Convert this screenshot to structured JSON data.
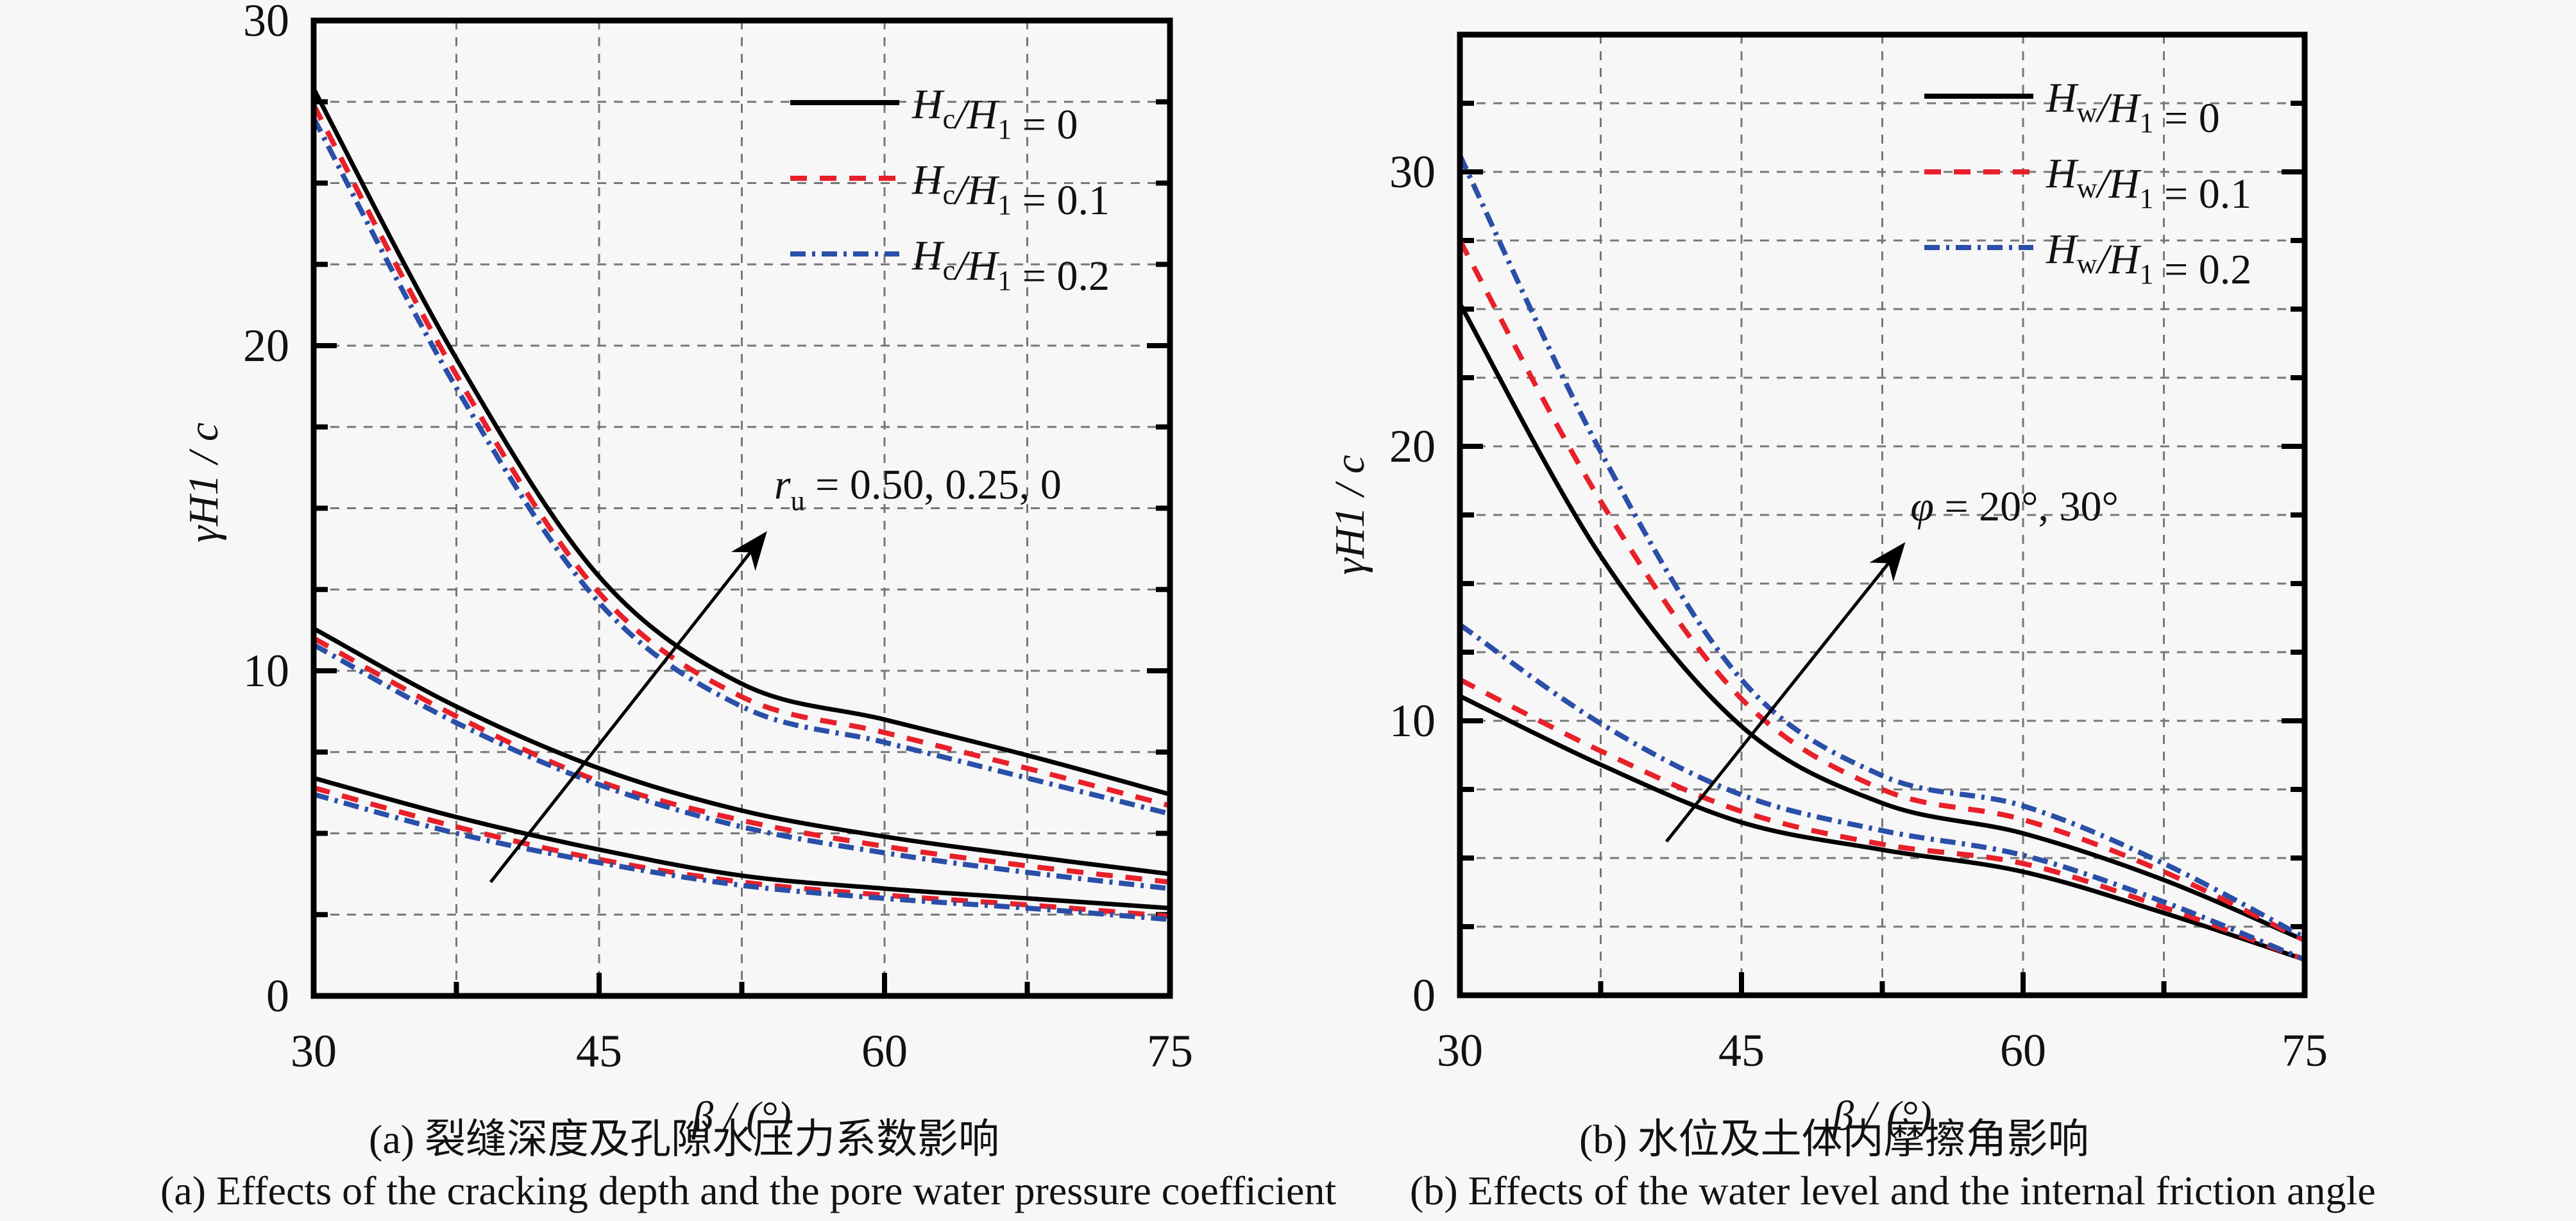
{
  "chart_data": [
    {
      "type": "line",
      "id": "a",
      "xlabel": "β / (°)",
      "ylabel": "γH1 / c",
      "xlim": [
        30,
        75
      ],
      "ylim": [
        0,
        30
      ],
      "xticks": [
        30,
        45,
        60,
        75
      ],
      "yticks": [
        0,
        10,
        20,
        30
      ],
      "grid": true,
      "grid_step": {
        "x": 7.5,
        "y": 2.5
      },
      "legend_position": "top-right",
      "legend": [
        {
          "main": "H",
          "sub": "c",
          "rest": "/",
          "main2": "H",
          "sub2": "1",
          "value": "= 0",
          "style": "solid",
          "color": "#000000"
        },
        {
          "main": "H",
          "sub": "c",
          "rest": "/",
          "main2": "H",
          "sub2": "1",
          "value": "= 0.1",
          "style": "dashed",
          "color": "#e8202a"
        },
        {
          "main": "H",
          "sub": "c",
          "rest": "/",
          "main2": "H",
          "sub2": "1",
          "value": "= 0.2",
          "style": "dashdot",
          "color": "#2a4fa8"
        }
      ],
      "annotation": {
        "symbol": "r",
        "sub": "u",
        "text": " = 0.50, 0.25, 0",
        "anchor": [
          54.2,
          15.3
        ],
        "arrow_from": [
          39.3,
          3.5
        ],
        "arrow_to": [
          53.7,
          14.2
        ]
      },
      "x": [
        30,
        37.5,
        45,
        52.5,
        60,
        67.5,
        75
      ],
      "series": [
        {
          "name": "Hc/H1 = 0, ru = 0",
          "style": "solid",
          "color": "#000000",
          "values": [
            27.9,
            19.6,
            12.9,
            9.6,
            8.5,
            7.4,
            6.2
          ]
        },
        {
          "name": "Hc/H1 = 0.1, ru = 0",
          "style": "dashed",
          "color": "#e8202a",
          "values": [
            27.4,
            19.1,
            12.4,
            9.2,
            8.1,
            7.0,
            5.85
          ]
        },
        {
          "name": "Hc/H1 = 0.2, ru = 0",
          "style": "dashdot",
          "color": "#2a4fa8",
          "values": [
            27.0,
            18.7,
            12.1,
            8.9,
            7.8,
            6.7,
            5.6
          ]
        },
        {
          "name": "Hc/H1 = 0, ru = 0.25",
          "style": "solid",
          "color": "#000000",
          "values": [
            11.3,
            8.9,
            7.0,
            5.7,
            4.9,
            4.3,
            3.75
          ]
        },
        {
          "name": "Hc/H1 = 0.1, ru = 0.25",
          "style": "dashed",
          "color": "#e8202a",
          "values": [
            11.0,
            8.6,
            6.6,
            5.4,
            4.6,
            4.0,
            3.5
          ]
        },
        {
          "name": "Hc/H1 = 0.2, ru = 0.25",
          "style": "dashdot",
          "color": "#2a4fa8",
          "values": [
            10.8,
            8.4,
            6.5,
            5.2,
            4.4,
            3.8,
            3.3
          ]
        },
        {
          "name": "Hc/H1 = 0, ru = 0.50",
          "style": "solid",
          "color": "#000000",
          "values": [
            6.7,
            5.5,
            4.5,
            3.7,
            3.3,
            3.0,
            2.7
          ]
        },
        {
          "name": "Hc/H1 = 0.1, ru = 0.50",
          "style": "dashed",
          "color": "#e8202a",
          "values": [
            6.4,
            5.2,
            4.2,
            3.5,
            3.1,
            2.8,
            2.45
          ]
        },
        {
          "name": "Hc/H1 = 0.2, ru = 0.50",
          "style": "dashdot",
          "color": "#2a4fa8",
          "values": [
            6.2,
            5.0,
            4.1,
            3.4,
            3.0,
            2.7,
            2.35
          ]
        }
      ],
      "caption_cn": "(a) 裂缝深度及孔隙水压力系数影响",
      "caption_en": "(a) Effects of the cracking depth and the pore water pressure coefficient"
    },
    {
      "type": "line",
      "id": "b",
      "xlabel": "β / (°)",
      "ylabel": "γH1 / c",
      "xlim": [
        30,
        75
      ],
      "ylim": [
        0,
        35
      ],
      "xticks": [
        30,
        45,
        60,
        75
      ],
      "yticks": [
        0,
        10,
        20,
        30
      ],
      "grid": true,
      "grid_step": {
        "x": 7.5,
        "y": 2.5
      },
      "legend_position": "top-right",
      "legend": [
        {
          "main": "H",
          "sub": "w",
          "rest": "/",
          "main2": "H",
          "sub2": "1",
          "value": "= 0",
          "style": "solid",
          "color": "#000000"
        },
        {
          "main": "H",
          "sub": "w",
          "rest": "/",
          "main2": "H",
          "sub2": "1",
          "value": "= 0.1",
          "style": "dashed",
          "color": "#e8202a"
        },
        {
          "main": "H",
          "sub": "w",
          "rest": "/",
          "main2": "H",
          "sub2": "1",
          "value": "= 0.2",
          "style": "dashdot",
          "color": "#2a4fa8"
        }
      ],
      "annotation": {
        "symbol": "φ",
        "sub": "",
        "text": " = 20°, 30°",
        "anchor": [
          54.0,
          17.3
        ],
        "arrow_from": [
          41.0,
          5.6
        ],
        "arrow_to": [
          53.6,
          16.4
        ]
      },
      "x": [
        30,
        37.5,
        45,
        52.5,
        60,
        67.5,
        75
      ],
      "series": [
        {
          "name": "Hw/H1 = 0, φ = 30°",
          "style": "solid",
          "color": "#000000",
          "values": [
            25.2,
            16.0,
            9.8,
            7.0,
            5.9,
            4.2,
            2.0
          ]
        },
        {
          "name": "Hw/H1 = 0.1, φ = 30°",
          "style": "dashed",
          "color": "#e8202a",
          "values": [
            27.5,
            18.0,
            10.8,
            7.5,
            6.4,
            4.5,
            2.0
          ]
        },
        {
          "name": "Hw/H1 = 0.2, φ = 30°",
          "style": "dashdot",
          "color": "#2a4fa8",
          "values": [
            30.6,
            19.8,
            11.5,
            8.0,
            6.9,
            4.8,
            2.1
          ]
        },
        {
          "name": "Hw/H1 = 0, φ = 20°",
          "style": "solid",
          "color": "#000000",
          "values": [
            10.9,
            8.4,
            6.3,
            5.3,
            4.5,
            3.0,
            1.3
          ]
        },
        {
          "name": "Hw/H1 = 0.1, φ = 20°",
          "style": "dashed",
          "color": "#e8202a",
          "values": [
            11.5,
            8.9,
            6.7,
            5.5,
            4.8,
            3.2,
            1.3
          ]
        },
        {
          "name": "Hw/H1 = 0.2, φ = 20°",
          "style": "dashdot",
          "color": "#2a4fa8",
          "values": [
            13.5,
            9.9,
            7.3,
            6.0,
            5.1,
            3.4,
            1.3
          ]
        }
      ],
      "caption_cn": "(b) 水位及土体内摩擦角影响",
      "caption_en": "(b) Effects of the water level and the internal friction angle"
    }
  ]
}
